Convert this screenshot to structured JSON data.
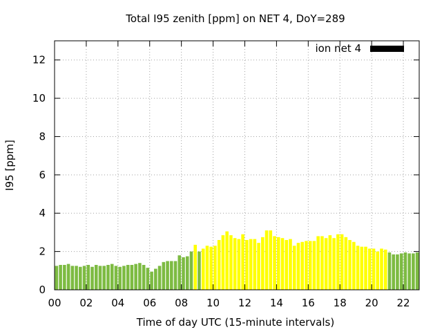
{
  "chart_data": {
    "type": "bar",
    "title": "Total I95 zenith [ppm] on NET 4, DoY=289",
    "xlabel": "Time of day UTC (15-minute intervals)",
    "ylabel": "I95 [ppm]",
    "ylim": [
      0,
      13
    ],
    "yticks": [
      0,
      2,
      4,
      6,
      8,
      10,
      12
    ],
    "ytick_labels": [
      "0",
      "2",
      "4",
      "6",
      "8",
      "10",
      "12"
    ],
    "xlim": [
      0,
      23.0
    ],
    "xticks": [
      0,
      2,
      4,
      6,
      8,
      10,
      12,
      14,
      16,
      18,
      20,
      22
    ],
    "xtick_labels": [
      "00",
      "02",
      "04",
      "06",
      "08",
      "10",
      "12",
      "14",
      "16",
      "18",
      "20",
      "22"
    ],
    "grid": true,
    "legend": {
      "label": "ion net 4",
      "color": "#000000",
      "position": "top-right"
    },
    "bar_width_hours": 0.2,
    "x": [
      0.125,
      0.375,
      0.625,
      0.875,
      1.125,
      1.375,
      1.625,
      1.875,
      2.125,
      2.375,
      2.625,
      2.875,
      3.125,
      3.375,
      3.625,
      3.875,
      4.125,
      4.375,
      4.625,
      4.875,
      5.125,
      5.375,
      5.625,
      5.875,
      6.125,
      6.375,
      6.625,
      6.875,
      7.125,
      7.375,
      7.625,
      7.875,
      8.125,
      8.375,
      8.625,
      8.875,
      9.125,
      9.375,
      9.625,
      9.875,
      10.125,
      10.375,
      10.625,
      10.875,
      11.125,
      11.375,
      11.625,
      11.875,
      12.125,
      12.375,
      12.625,
      12.875,
      13.125,
      13.375,
      13.625,
      13.875,
      14.125,
      14.375,
      14.625,
      14.875,
      15.125,
      15.375,
      15.625,
      15.875,
      16.125,
      16.375,
      16.625,
      16.875,
      17.125,
      17.375,
      17.625,
      17.875,
      18.125,
      18.375,
      18.625,
      18.875,
      19.125,
      19.375,
      19.625,
      19.875,
      20.125,
      20.375,
      20.625,
      20.875,
      21.125,
      21.375,
      21.625,
      21.875,
      22.125,
      22.375,
      22.625,
      22.875
    ],
    "values": [
      1.25,
      1.3,
      1.3,
      1.35,
      1.25,
      1.25,
      1.2,
      1.25,
      1.3,
      1.2,
      1.3,
      1.25,
      1.25,
      1.3,
      1.35,
      1.25,
      1.2,
      1.25,
      1.3,
      1.3,
      1.35,
      1.4,
      1.3,
      1.15,
      0.95,
      1.1,
      1.25,
      1.45,
      1.5,
      1.5,
      1.5,
      1.8,
      1.7,
      1.75,
      2.0,
      2.35,
      2.0,
      2.15,
      2.3,
      2.25,
      2.3,
      2.6,
      2.85,
      3.05,
      2.85,
      2.7,
      2.65,
      2.9,
      2.6,
      2.65,
      2.65,
      2.45,
      2.75,
      3.1,
      3.1,
      2.8,
      2.75,
      2.7,
      2.6,
      2.65,
      2.3,
      2.45,
      2.5,
      2.55,
      2.55,
      2.55,
      2.8,
      2.8,
      2.7,
      2.85,
      2.7,
      2.9,
      2.9,
      2.75,
      2.6,
      2.5,
      2.3,
      2.25,
      2.25,
      2.15,
      2.15,
      2.0,
      2.15,
      2.1,
      1.95,
      1.85,
      1.85,
      1.9,
      1.95,
      1.9,
      1.9,
      1.95
    ],
    "colors": [
      "#7dbb42",
      "#7dbb42",
      "#7dbb42",
      "#7dbb42",
      "#7dbb42",
      "#7dbb42",
      "#7dbb42",
      "#7dbb42",
      "#7dbb42",
      "#7dbb42",
      "#7dbb42",
      "#7dbb42",
      "#7dbb42",
      "#7dbb42",
      "#7dbb42",
      "#7dbb42",
      "#7dbb42",
      "#7dbb42",
      "#7dbb42",
      "#7dbb42",
      "#7dbb42",
      "#7dbb42",
      "#7dbb42",
      "#7dbb42",
      "#7dbb42",
      "#7dbb42",
      "#7dbb42",
      "#7dbb42",
      "#7dbb42",
      "#7dbb42",
      "#7dbb42",
      "#7dbb42",
      "#7dbb42",
      "#7dbb42",
      "#7dbb42",
      "#ffff00",
      "#7dbb42",
      "#ffff00",
      "#ffff00",
      "#ffff00",
      "#ffff00",
      "#ffff00",
      "#ffff00",
      "#ffff00",
      "#ffff00",
      "#ffff00",
      "#ffff00",
      "#ffff00",
      "#ffff00",
      "#ffff00",
      "#ffff00",
      "#ffff00",
      "#ffff00",
      "#ffff00",
      "#ffff00",
      "#ffff00",
      "#ffff00",
      "#ffff00",
      "#ffff00",
      "#ffff00",
      "#ffff00",
      "#ffff00",
      "#ffff00",
      "#ffff00",
      "#ffff00",
      "#ffff00",
      "#ffff00",
      "#ffff00",
      "#ffff00",
      "#ffff00",
      "#ffff00",
      "#ffff00",
      "#ffff00",
      "#ffff00",
      "#ffff00",
      "#ffff00",
      "#ffff00",
      "#ffff00",
      "#ffff00",
      "#ffff00",
      "#ffff00",
      "#ffff00",
      "#ffff00",
      "#ffff00",
      "#7dbb42",
      "#7dbb42",
      "#7dbb42",
      "#7dbb42",
      "#7dbb42",
      "#7dbb42",
      "#7dbb42",
      "#7dbb42"
    ]
  }
}
